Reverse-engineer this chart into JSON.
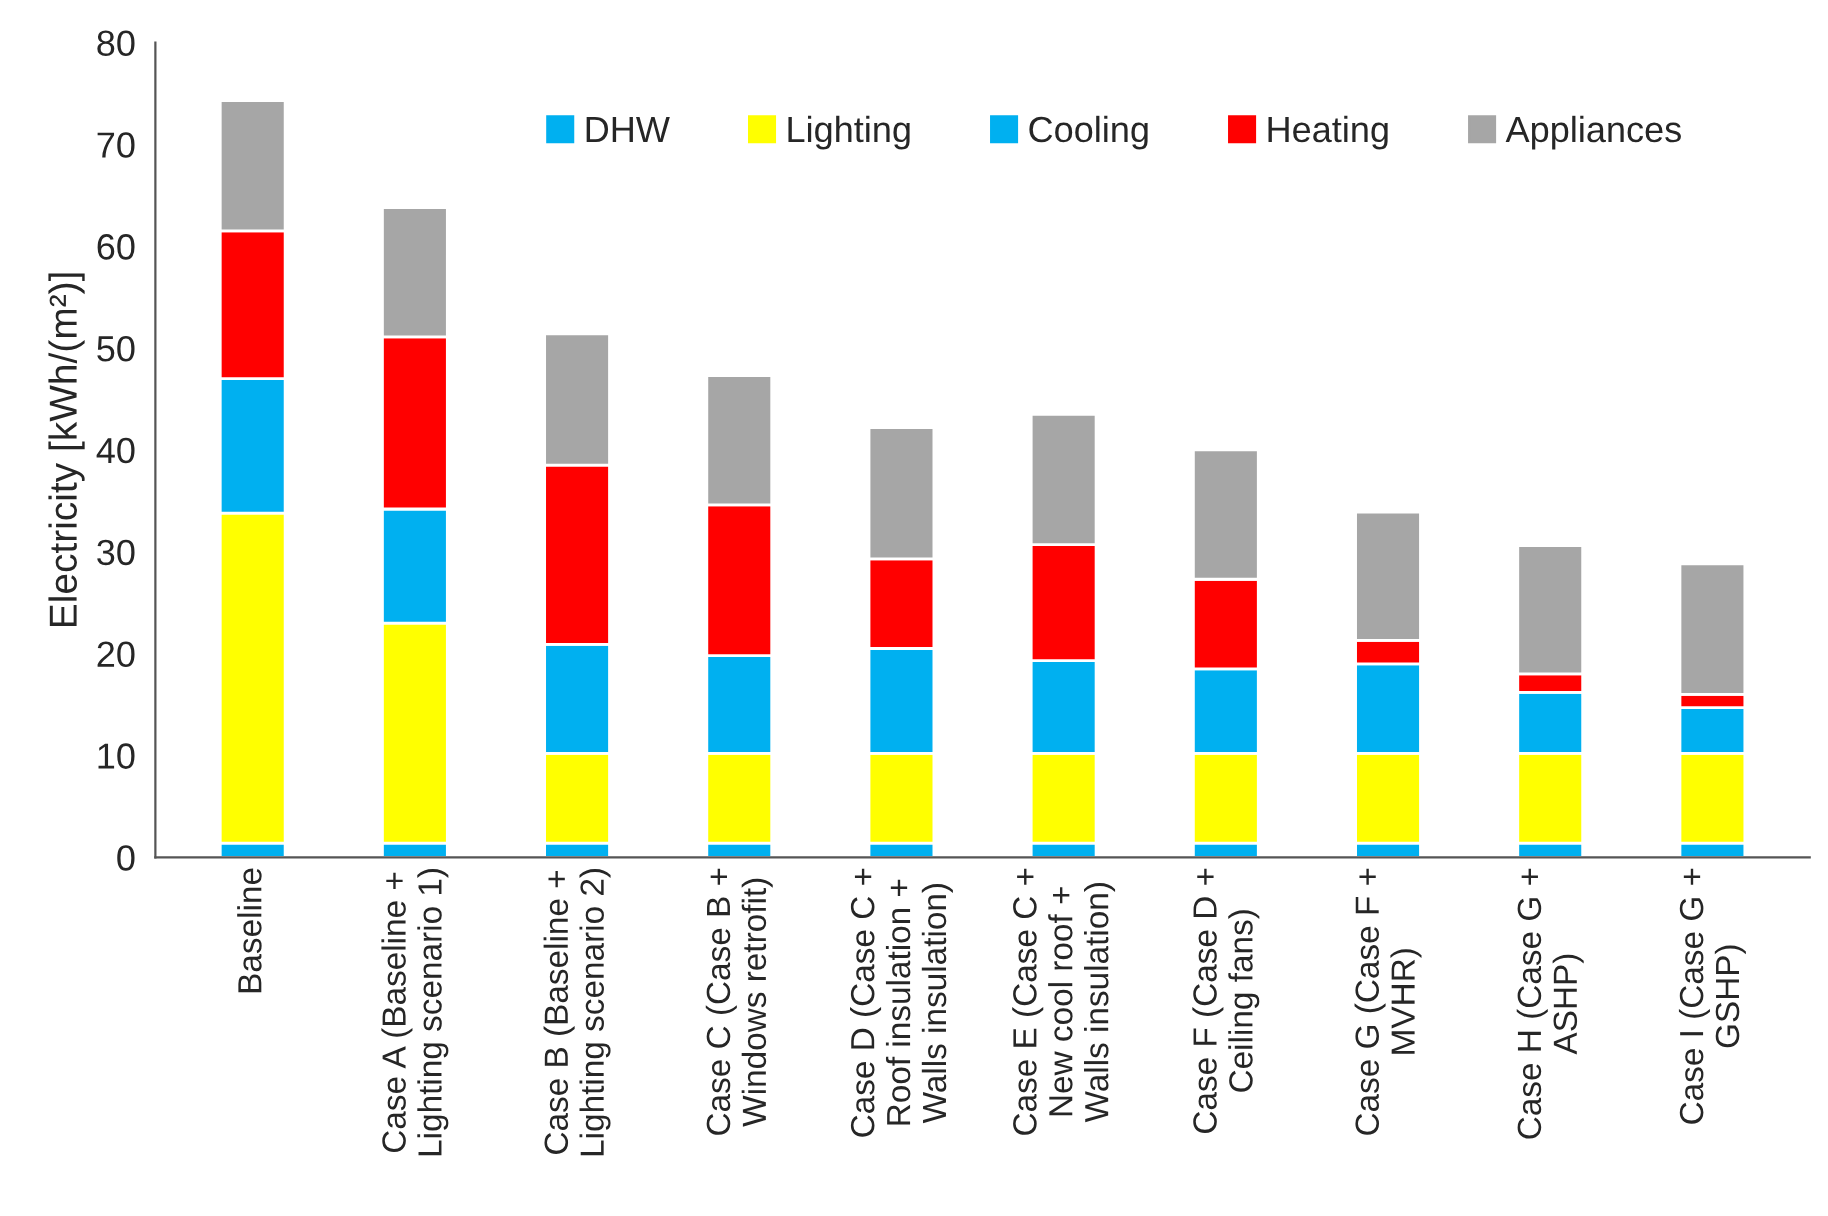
{
  "chart_data": {
    "type": "bar",
    "stacked": true,
    "ylabel": "Electricity [kWh/(m²)]",
    "categories": [
      "Baseline",
      "Case A (Baseline +\nLighting scenario 1)",
      "Case B (Baseline +\nLighting scenario 2)",
      "Case C (Case B +\nWindows retrofit)",
      "Case D (Case C +\nRoof insulation +\nWalls insulation)",
      "Case E (Case C +\nNew cool roof +\nWalls insulation)",
      "Case F (Case D +\nCeiling fans)",
      "Case G (Case F +\nMVHR)",
      "Case H (Case G +\nASHP)",
      "Case I (Case G +\nGSHP)"
    ],
    "series": [
      {
        "name": "DHW",
        "color": "#00b0f0",
        "values": [
          1.4,
          1.4,
          1.4,
          1.4,
          1.4,
          1.4,
          1.4,
          1.4,
          1.4,
          1.4
        ]
      },
      {
        "name": "Lighting",
        "color": "#ffff00",
        "values": [
          32.4,
          21.6,
          8.8,
          8.8,
          8.8,
          8.8,
          8.8,
          8.8,
          8.8,
          8.8
        ]
      },
      {
        "name": "Cooling",
        "color": "#00b0f0",
        "values": [
          13.2,
          11.2,
          10.7,
          9.6,
          10.3,
          9.1,
          8.3,
          8.8,
          6.0,
          4.5
        ]
      },
      {
        "name": "Heating",
        "color": "#ff0000",
        "values": [
          14.5,
          16.9,
          17.6,
          14.8,
          8.8,
          11.4,
          8.8,
          2.3,
          1.8,
          1.3
        ]
      },
      {
        "name": "Appliances",
        "color": "#a6a6a6",
        "values": [
          12.8,
          12.7,
          12.9,
          12.7,
          12.9,
          12.8,
          12.7,
          12.6,
          12.6,
          12.8
        ]
      }
    ],
    "ylim": [
      0,
      80
    ],
    "yticks": [
      0,
      10,
      20,
      30,
      40,
      50,
      60,
      70,
      80
    ],
    "grid": false,
    "legend": "top"
  }
}
